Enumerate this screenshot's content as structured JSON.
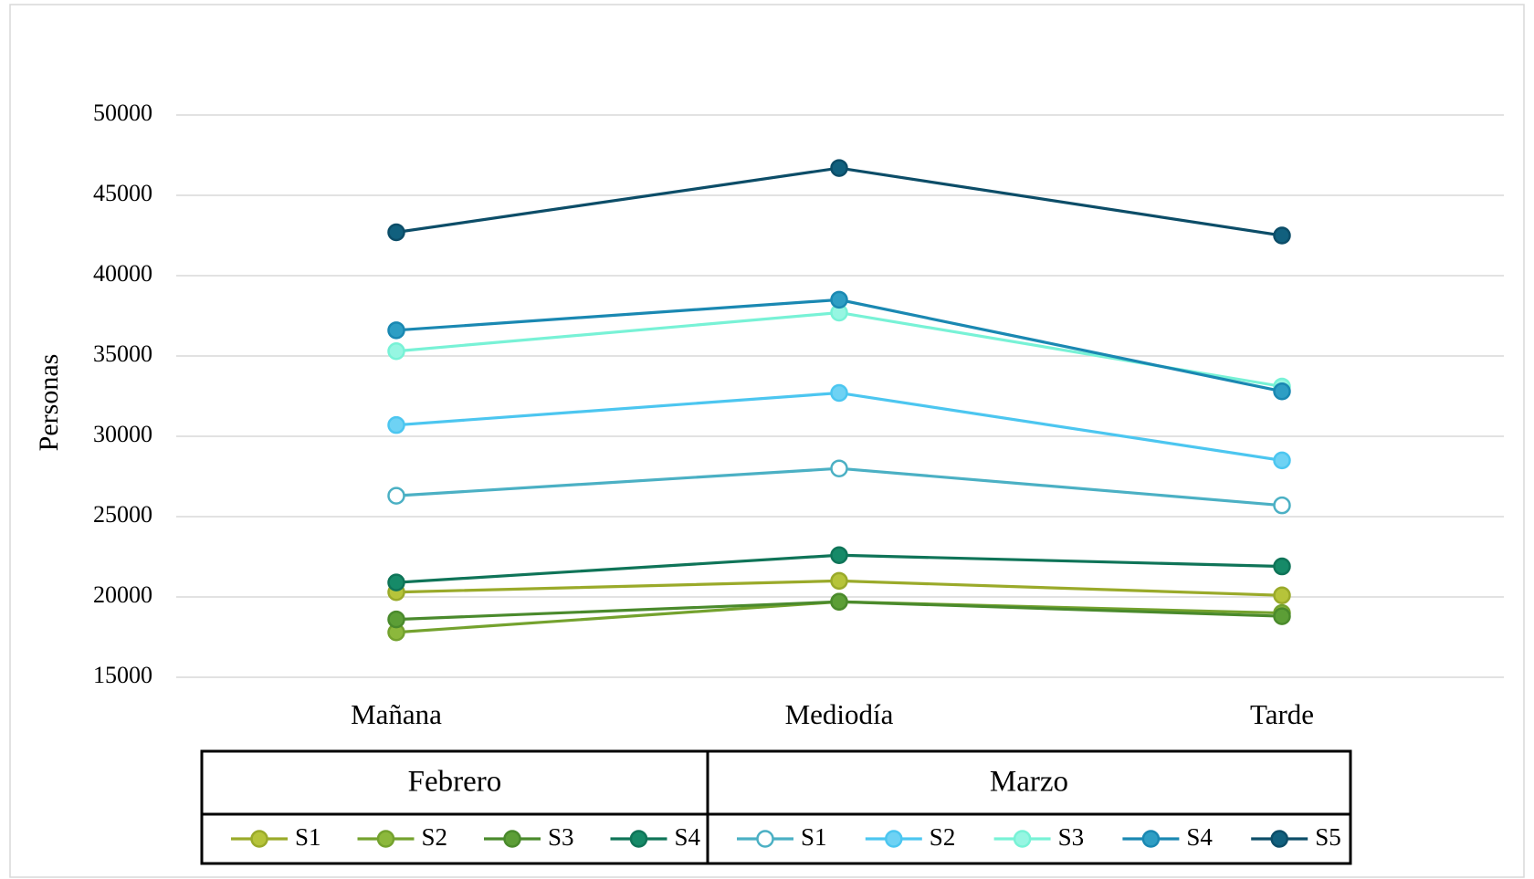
{
  "chart_data": {
    "type": "line",
    "y_label": "Personas",
    "categories": [
      "Mañana",
      "Mediodía",
      "Tarde"
    ],
    "ylim": [
      15000,
      50000
    ],
    "yticks": [
      15000,
      20000,
      25000,
      30000,
      35000,
      40000,
      45000,
      50000
    ],
    "grid": true,
    "groups": [
      {
        "name": "Febrero",
        "series": [
          {
            "name": "S1",
            "color": "#9aaa2a",
            "marker_fill": "#b6c43a",
            "values": [
              20300,
              21000,
              20100
            ]
          },
          {
            "name": "S2",
            "color": "#74a22e",
            "marker_fill": "#8cb83c",
            "values": [
              17800,
              19700,
              19000
            ]
          },
          {
            "name": "S3",
            "color": "#4a8a2c",
            "marker_fill": "#5c9e36",
            "values": [
              18600,
              19700,
              18800
            ]
          },
          {
            "name": "S4",
            "color": "#0f7458",
            "marker_fill": "#168a68",
            "values": [
              20900,
              22600,
              21900
            ]
          }
        ]
      },
      {
        "name": "Marzo",
        "series": [
          {
            "name": "S1",
            "color": "#4bb0c4",
            "marker_fill": "#ffffff",
            "values": [
              26300,
              28000,
              25700
            ]
          },
          {
            "name": "S2",
            "color": "#4cc6f0",
            "marker_fill": "#6ed2f4",
            "values": [
              30700,
              32700,
              28500
            ]
          },
          {
            "name": "S3",
            "color": "#78f2d6",
            "marker_fill": "#96f6e2",
            "values": [
              35300,
              37700,
              33100
            ]
          },
          {
            "name": "S4",
            "color": "#1a88b2",
            "marker_fill": "#2e9ec4",
            "values": [
              36600,
              38500,
              32800
            ]
          },
          {
            "name": "S5",
            "color": "#0c4d68",
            "marker_fill": "#11607e",
            "values": [
              42700,
              46700,
              42500
            ]
          }
        ]
      }
    ]
  }
}
